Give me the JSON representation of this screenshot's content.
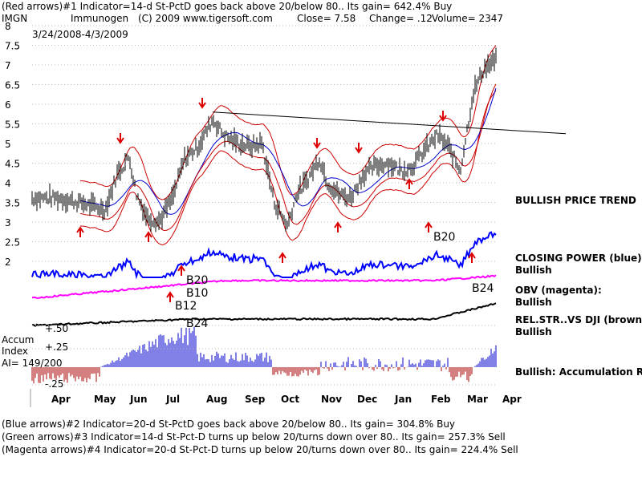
{
  "header": {
    "line1": "(Red arrows)#1 Indicator=14-d St-PctD goes back above 20/below 80.. Its gain= 642.4% Buy",
    "ticker": "IMGN",
    "name": "Immunogen",
    "copyright": "(C) 2009 www.tigersoft.com",
    "close": "Close=  7.58",
    "change": "Change= .12",
    "volume": "Volume= 2347",
    "date_range": "3/24/2008-4/3/2009"
  },
  "footer": {
    "line1": "(Blue arrows)#2 Indicator=20-d St-PctD goes back above 20/below 80.. Its gain= 304.8% Buy",
    "line2": "(Green arrows)#3 Indicator=14-d St-Pct-D turns up below 20/turns down over 80.. Its gain= 257.3% Sell",
    "line3": "(Magenta arrows)#4 Indicator=20-d St-Pct-D turns up below 20/turns down over 80.. Its gain= 224.4% Sell"
  },
  "panel_labels": {
    "price_trend": "BULLISH PRICE TREND",
    "cp_title": "CLOSING POWER (blue):",
    "cp_value": "Bullish",
    "obv_title": "OBV (magenta):",
    "obv_value": "Bullish",
    "rs_title": "REL.STR..VS DJI (brown):",
    "rs_value": "Bullish",
    "accum_status": "Bullish: Accumulation Rising",
    "accum_title1": "Accum",
    "accum_title2": "Index",
    "accum_ai": "AI= 149/200",
    "accum_ticks": [
      "+.50",
      "+.25",
      "-.25"
    ]
  },
  "annotations": {
    "b20a": "B20",
    "b10": "B10",
    "b12": "B12",
    "b24a": "B24",
    "b20b": "B20",
    "b24b": "B24"
  },
  "colors": {
    "price_bars": "#000000",
    "bands": "#cc0000",
    "ma": "#0000cc",
    "closing_power": "#0000ff",
    "obv": "#ff00ff",
    "rel_strength": "#000000",
    "accum_pos": "#0000cc",
    "accum_neg": "#aa0000",
    "buy_arrow": "#dd0000",
    "grid": "#bbbbbb"
  },
  "chart_data": {
    "type": "line",
    "title": "IMGN Immunogen",
    "xlabel": "",
    "ylabel": "",
    "ylim": [
      2,
      8
    ],
    "grid": true,
    "x_ticks": [
      "Apr",
      "May",
      "Jun",
      "Jul",
      "Aug",
      "Sep",
      "Oct",
      "Nov",
      "Dec",
      "Jan",
      "Feb",
      "Mar",
      "Apr"
    ],
    "y_ticks": [
      "2",
      "2.5",
      "3",
      "3.5",
      "4",
      "4.5",
      "5",
      "5.5",
      "6",
      "6.5",
      "7",
      "7.5",
      "8"
    ],
    "series": [
      {
        "name": "price",
        "x": [
          "Mar 24",
          "Apr",
          "Apr 20",
          "May 5",
          "May 15",
          "May 25",
          "Jun 1",
          "Jun 10",
          "Jun 20",
          "Jul 1",
          "Jul 10",
          "Jul 20",
          "Aug 1",
          "Aug 10",
          "Aug 20",
          "Sep 1",
          "Sep 10",
          "Sep 20",
          "Oct 1",
          "Oct 8",
          "Oct 15",
          "Oct 25",
          "Nov 1",
          "Nov 10",
          "Nov 20",
          "Dec 1",
          "Dec 10",
          "Dec 20",
          "Jan 1",
          "Jan 10",
          "Jan 20",
          "Feb 1",
          "Feb 10",
          "Feb 20",
          "Mar 1",
          "Mar 10",
          "Mar 20",
          "Apr 3"
        ],
        "values": [
          3.6,
          3.6,
          3.45,
          3.3,
          4.2,
          4.65,
          3.7,
          3.1,
          3.0,
          3.6,
          4.6,
          4.9,
          5.6,
          5.2,
          5.0,
          4.9,
          5.0,
          3.5,
          2.9,
          3.7,
          4.0,
          4.6,
          4.0,
          3.7,
          3.6,
          4.2,
          4.4,
          4.5,
          4.3,
          4.4,
          4.8,
          5.2,
          4.9,
          4.3,
          6.3,
          6.9,
          7.1,
          7.58
        ]
      },
      {
        "name": "resistance",
        "x": [
          "Aug",
          "Apr"
        ],
        "values": [
          5.8,
          5.3
        ]
      }
    ],
    "arrows_buy_approx": [
      "Apr 10",
      "Jun 20",
      "Oct 5",
      "Nov 5",
      "Jan 10",
      "Feb 1"
    ],
    "arrows_sell_approx": [
      "May 25",
      "Jul 25",
      "Nov 1",
      "Dec 1",
      "Feb 5"
    ]
  }
}
